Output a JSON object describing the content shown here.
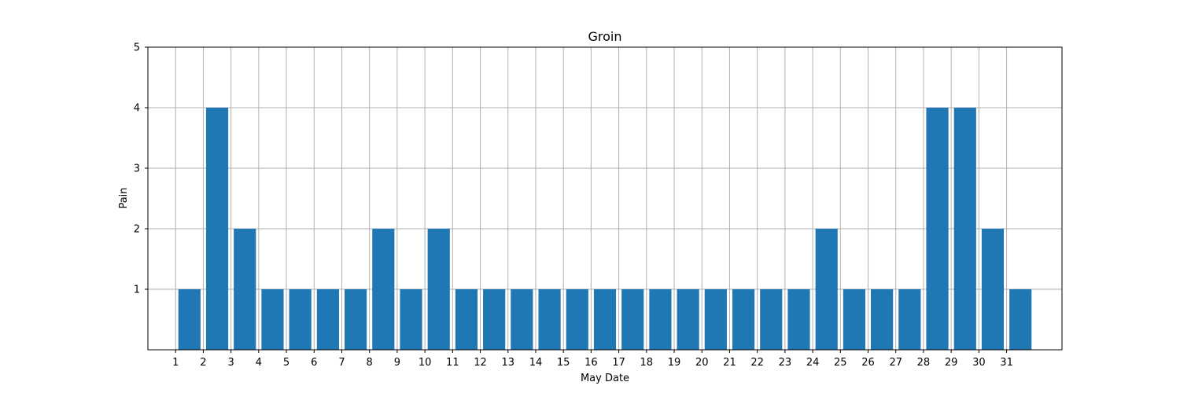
{
  "chart_data": {
    "type": "bar",
    "title": "Groin",
    "xlabel": "May Date",
    "ylabel": "Pain",
    "x": [
      1,
      2,
      3,
      4,
      5,
      6,
      7,
      8,
      9,
      10,
      11,
      12,
      13,
      14,
      15,
      16,
      17,
      18,
      19,
      20,
      21,
      22,
      23,
      24,
      25,
      26,
      27,
      28,
      29,
      30,
      31
    ],
    "values": [
      1,
      4,
      2,
      1,
      1,
      1,
      1,
      2,
      1,
      2,
      1,
      1,
      1,
      1,
      1,
      1,
      1,
      1,
      1,
      1,
      1,
      1,
      1,
      2,
      1,
      1,
      1,
      4,
      4,
      2,
      1
    ],
    "yticks": [
      1,
      2,
      3,
      4,
      5
    ],
    "ylim": [
      0,
      5
    ],
    "xlim": [
      -0.5,
      32.5
    ],
    "grid": true,
    "bar_color": "#1f77b4",
    "grid_color": "#b0b0b0"
  }
}
